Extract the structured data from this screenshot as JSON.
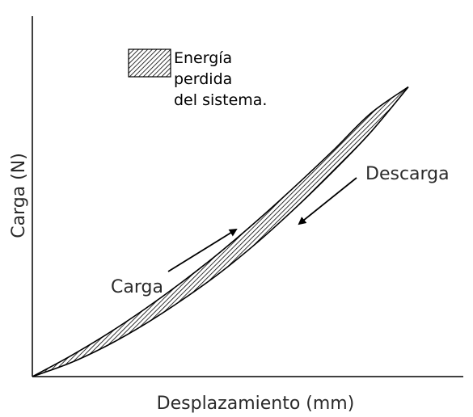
{
  "chart_data": {
    "type": "area",
    "title": "",
    "xlabel": "Desplazamiento (mm)",
    "ylabel": "Carga (N)",
    "xlim": [
      0,
      10
    ],
    "ylim": [
      0,
      10
    ],
    "grid": false,
    "legend": {
      "placement": "top-left",
      "entries": [
        {
          "lines": [
            "Energía",
            "perdida",
            "del sistema."
          ],
          "pattern": "hatched"
        }
      ]
    },
    "series": [
      {
        "x": [
          0,
          1,
          2,
          3,
          4,
          5,
          6,
          7,
          8,
          9,
          10
        ],
        "y": [
          0,
          0.72,
          1.52,
          2.41,
          3.38,
          4.43,
          5.57,
          6.78,
          8.04,
          9.36,
          10.3
        ]
      },
      {
        "x": [
          0,
          1,
          2,
          3,
          4,
          5,
          6,
          7,
          8,
          9,
          10
        ],
        "y": [
          0,
          0.48,
          1.11,
          1.87,
          2.74,
          3.7,
          4.79,
          6.0,
          7.3,
          8.69,
          10.3
        ]
      }
    ],
    "annotations": [
      {
        "text": "Carga",
        "arrow": "up-right"
      },
      {
        "text": "Descarga",
        "arrow": "down-left"
      }
    ]
  }
}
